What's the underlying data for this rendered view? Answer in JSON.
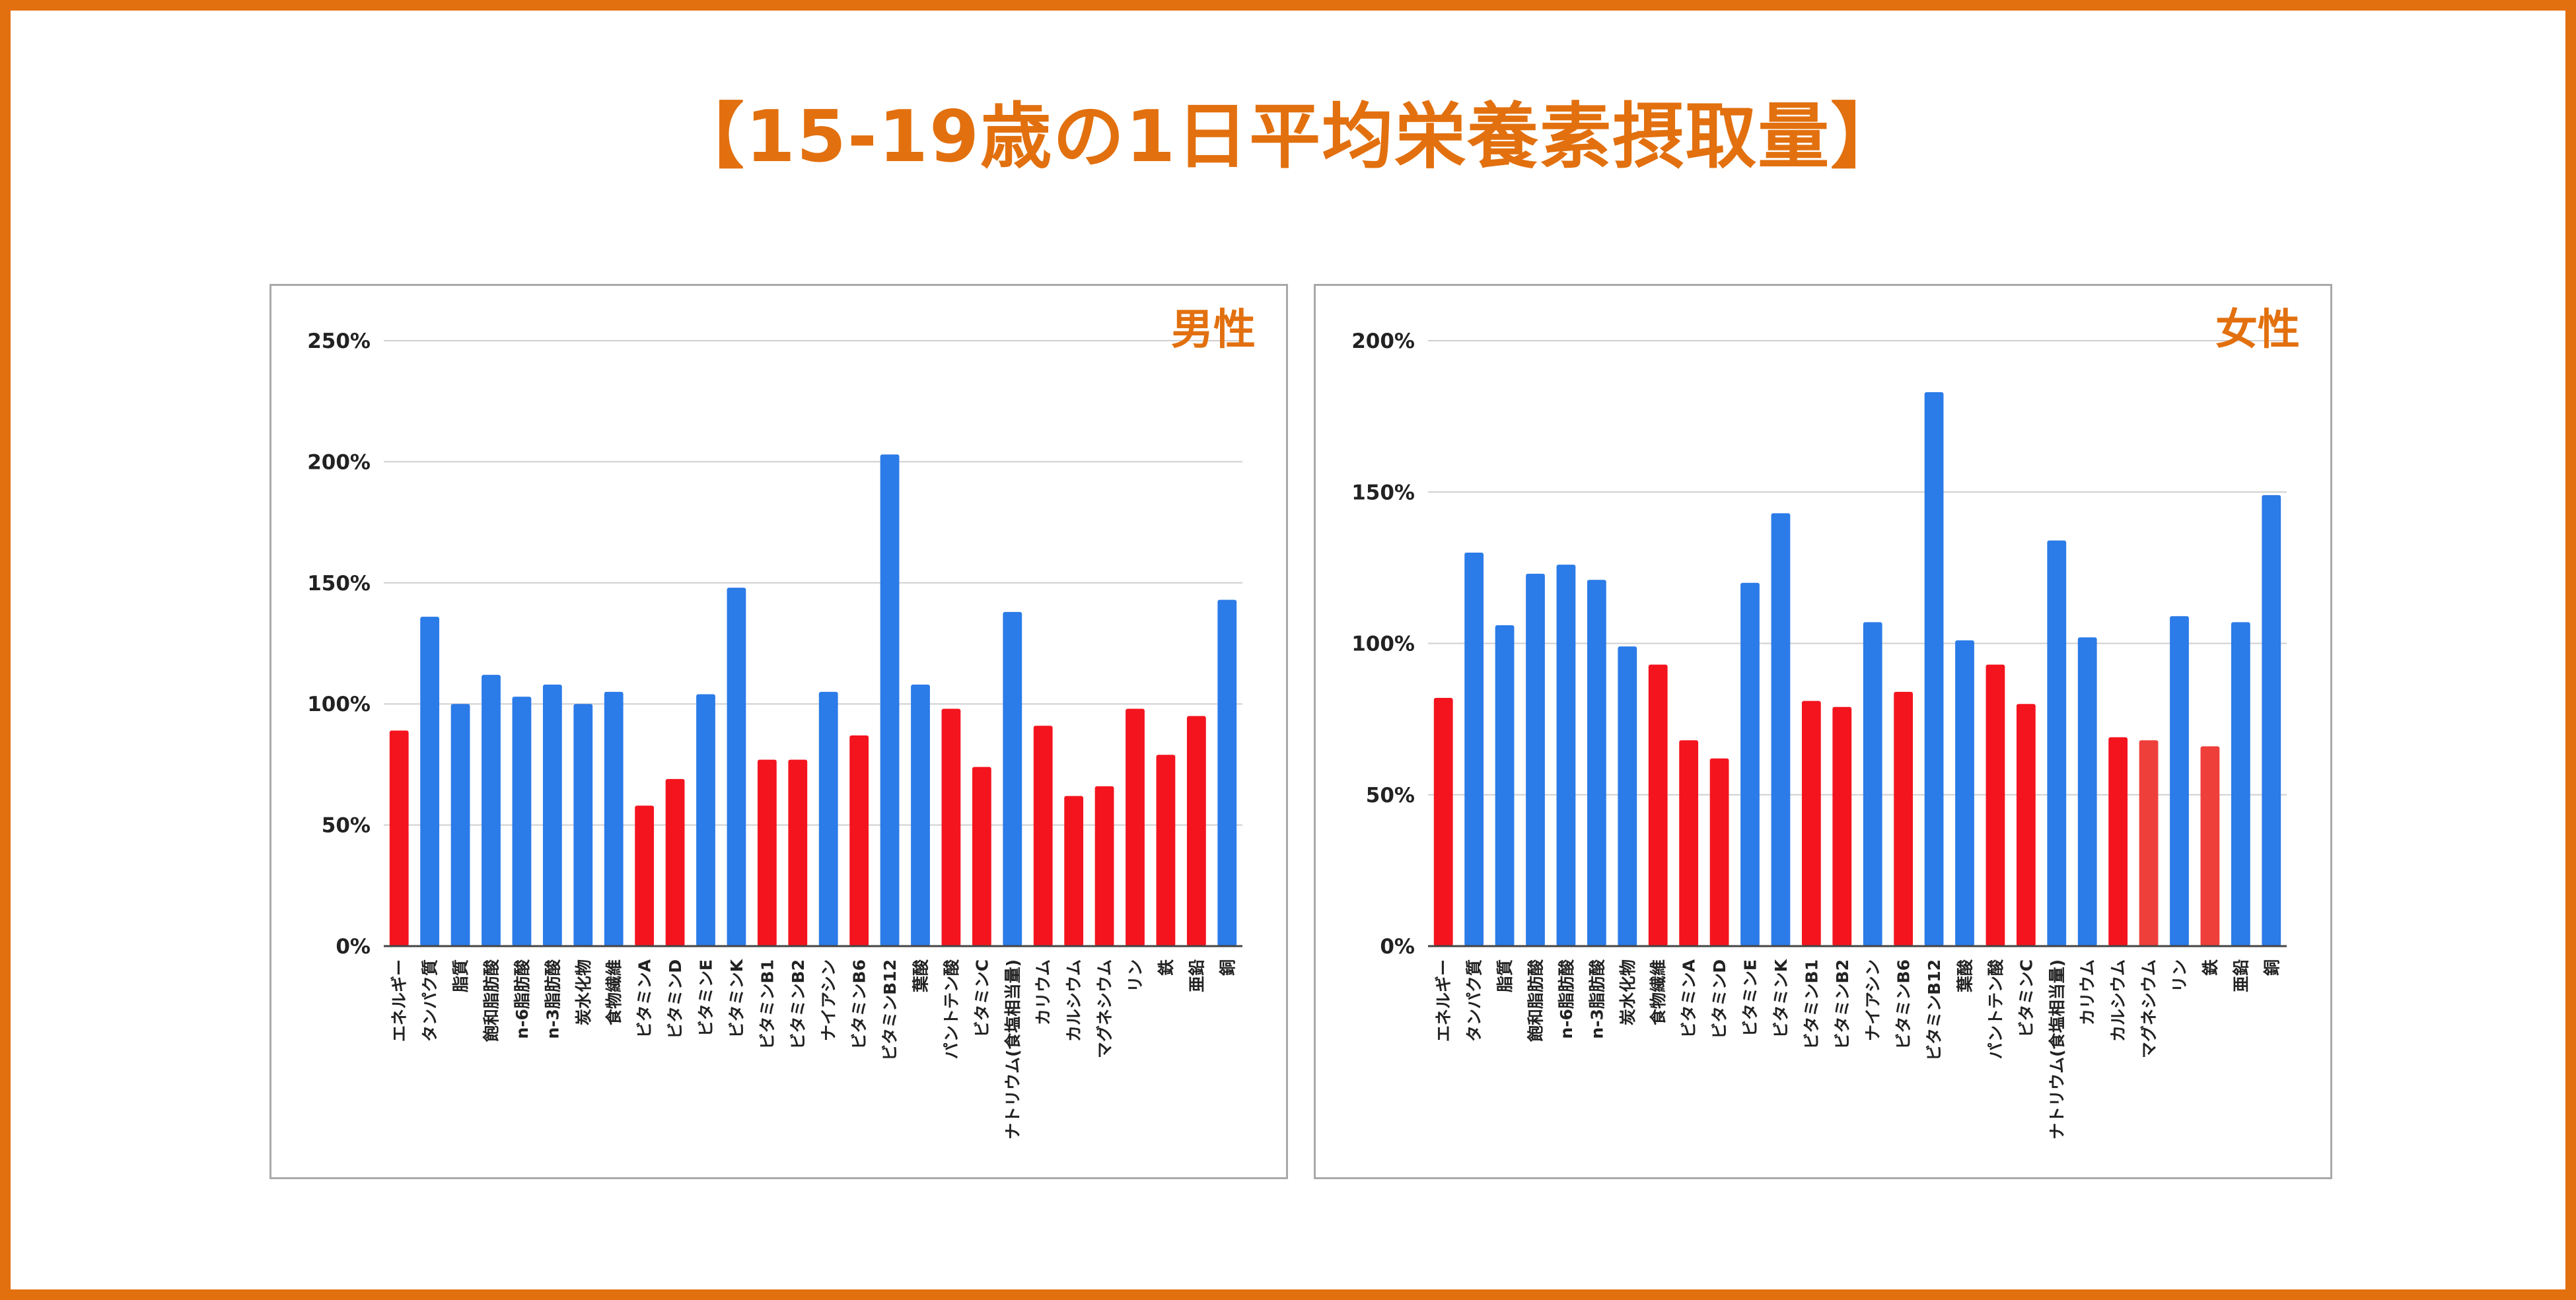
{
  "title": "【15-19歳の1日平均栄養素摂取量】",
  "colors": {
    "accent": "#E2700F",
    "blue": "#2B7BE8",
    "red": "#F4141E",
    "grid": "#cfcfcf",
    "axis": "#444444"
  },
  "chart_data": [
    {
      "type": "bar",
      "title": "男性",
      "ylim": [
        0,
        250
      ],
      "yticks": [
        0,
        50,
        100,
        150,
        200,
        250
      ],
      "yticklabels": [
        "0%",
        "50%",
        "100%",
        "150%",
        "200%",
        "250%"
      ],
      "grid": true,
      "categories": [
        "エネルギー",
        "タンパク質",
        "脂質",
        "飽和脂肪酸",
        "n-6脂肪酸",
        "n-3脂肪酸",
        "炭水化物",
        "食物繊維",
        "ビタミンA",
        "ビタミンD",
        "ビタミンE",
        "ビタミンK",
        "ビタミンB1",
        "ビタミンB2",
        "ナイアシン",
        "ビタミンB6",
        "ビタミンB12",
        "葉酸",
        "パントテン酸",
        "ビタミンC",
        "ナトリウム(食塩相当量)",
        "カリウム",
        "カルシウム",
        "マグネシウム",
        "リン",
        "鉄",
        "亜鉛",
        "銅"
      ],
      "values": [
        89,
        136,
        100,
        112,
        103,
        108,
        100,
        105,
        58,
        69,
        104,
        148,
        77,
        77,
        105,
        87,
        203,
        108,
        98,
        74,
        138,
        91,
        62,
        66,
        98,
        79,
        95,
        143
      ],
      "bar_colors": [
        "#F4141E",
        "#2B7BE8",
        "#2B7BE8",
        "#2B7BE8",
        "#2B7BE8",
        "#2B7BE8",
        "#2B7BE8",
        "#2B7BE8",
        "#F4141E",
        "#F4141E",
        "#2B7BE8",
        "#2B7BE8",
        "#F4141E",
        "#F4141E",
        "#2B7BE8",
        "#F4141E",
        "#2B7BE8",
        "#2B7BE8",
        "#F4141E",
        "#F4141E",
        "#2B7BE8",
        "#F4141E",
        "#F4141E",
        "#F4141E",
        "#F4141E",
        "#F4141E",
        "#F4141E",
        "#2B7BE8"
      ]
    },
    {
      "type": "bar",
      "title": "女性",
      "ylim": [
        0,
        200
      ],
      "yticks": [
        0,
        50,
        100,
        150,
        200
      ],
      "yticklabels": [
        "0%",
        "50%",
        "100%",
        "150%",
        "200%"
      ],
      "grid": true,
      "categories": [
        "エネルギー",
        "タンパク質",
        "脂質",
        "飽和脂肪酸",
        "n-6脂肪酸",
        "n-3脂肪酸",
        "炭水化物",
        "食物繊維",
        "ビタミンA",
        "ビタミンD",
        "ビタミンE",
        "ビタミンK",
        "ビタミンB1",
        "ビタミンB2",
        "ナイアシン",
        "ビタミンB6",
        "ビタミンB12",
        "葉酸",
        "パントテン酸",
        "ビタミンC",
        "ナトリウム(食塩相当量)",
        "カリウム",
        "カルシウム",
        "マグネシウム",
        "リン",
        "鉄",
        "亜鉛",
        "銅"
      ],
      "values": [
        82,
        130,
        106,
        123,
        126,
        121,
        99,
        93,
        68,
        62,
        120,
        143,
        81,
        79,
        107,
        84,
        183,
        101,
        93,
        80,
        134,
        102,
        69,
        68,
        109,
        66,
        107,
        149
      ],
      "bar_colors": [
        "#F4141E",
        "#2B7BE8",
        "#2B7BE8",
        "#2B7BE8",
        "#2B7BE8",
        "#2B7BE8",
        "#2B7BE8",
        "#F4141E",
        "#F4141E",
        "#F4141E",
        "#2B7BE8",
        "#2B7BE8",
        "#F4141E",
        "#F4141E",
        "#2B7BE8",
        "#F4141E",
        "#2B7BE8",
        "#2B7BE8",
        "#F4141E",
        "#F4141E",
        "#2B7BE8",
        "#2B7BE8",
        "#F4141E",
        "#EF3F3B",
        "#2B7BE8",
        "#EF3F3B",
        "#2B7BE8",
        "#2B7BE8"
      ]
    }
  ]
}
